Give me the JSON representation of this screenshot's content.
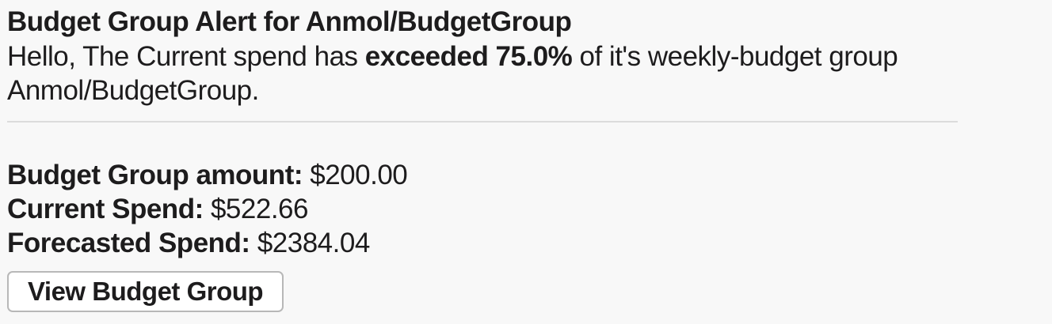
{
  "colors": {
    "page_background": "#f8f8f8",
    "text": "#1d1c1d",
    "divider": "#dcdcdc",
    "button_background": "#ffffff",
    "button_border": "#b8b8b8"
  },
  "message": {
    "title": "Budget Group Alert for Anmol/BudgetGroup",
    "body": {
      "text_before_bold": "Hello, The Current spend has ",
      "bold_text": "exceeded 75.0%",
      "text_after_bold": " of it's weekly-budget group",
      "line2": "Anmol/BudgetGroup."
    },
    "fields": [
      {
        "label": "Budget Group amount:",
        "value": "$200.00"
      },
      {
        "label": "Current Spend:",
        "value": "$522.66"
      },
      {
        "label": "Forecasted Spend:",
        "value": "$2384.04"
      }
    ],
    "actions": {
      "view_button_label": "View Budget Group"
    }
  }
}
